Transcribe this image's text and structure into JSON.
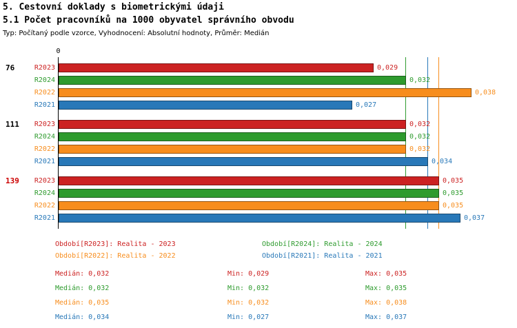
{
  "chart_data": {
    "type": "bar",
    "orientation": "horizontal",
    "title": "5. Cestovní doklady s biometrickými údaji",
    "subtitle": "5.1 Počet pracovníků na 1000 obyvatel správního obvodu",
    "note": "Typ: Počítaný podle vzorce, Vyhodnocení: Absolutní hodnoty, Průměr: Medián",
    "x_axis": {
      "origin_label": "0",
      "min": 0,
      "max": 0.04,
      "gridlines": false
    },
    "series_order": [
      "R2023",
      "R2024",
      "R2022",
      "R2021"
    ],
    "series_colors": {
      "R2023": "#cc2222",
      "R2024": "#2e9b2e",
      "R2022": "#f78d1d",
      "R2021": "#2878b8"
    },
    "groups": [
      {
        "label": "76",
        "label_color": "#000000",
        "values": {
          "R2023": 0.029,
          "R2024": 0.032,
          "R2022": 0.038,
          "R2021": 0.027
        },
        "value_labels": {
          "R2023": "0,029",
          "R2024": "0,032",
          "R2022": "0,038",
          "R2021": "0,027"
        }
      },
      {
        "label": "111",
        "label_color": "#000000",
        "values": {
          "R2023": 0.032,
          "R2024": 0.032,
          "R2022": 0.032,
          "R2021": 0.034
        },
        "value_labels": {
          "R2023": "0,032",
          "R2024": "0,032",
          "R2022": "0,032",
          "R2021": "0,034"
        }
      },
      {
        "label": "139",
        "label_color": "#cc0000",
        "values": {
          "R2023": 0.035,
          "R2024": 0.035,
          "R2022": 0.035,
          "R2021": 0.037
        },
        "value_labels": {
          "R2023": "0,035",
          "R2024": "0,035",
          "R2022": "0,035",
          "R2021": "0,037"
        }
      }
    ],
    "median_lines": {
      "R2023": 0.032,
      "R2024": 0.032,
      "R2022": 0.035,
      "R2021": 0.034
    },
    "legend_position": "bottom"
  },
  "legend": {
    "items": [
      {
        "series": "R2023",
        "text": "Období[R2023]: Realita - 2023"
      },
      {
        "series": "R2024",
        "text": "Období[R2024]: Realita - 2024"
      },
      {
        "series": "R2022",
        "text": "Období[R2022]: Realita - 2022"
      },
      {
        "series": "R2021",
        "text": "Období[R2021]: Realita - 2021"
      }
    ]
  },
  "stats": {
    "rows": [
      {
        "series": "R2023",
        "median": "Medián: 0,032",
        "min": "Min: 0,029",
        "max": "Max: 0,035"
      },
      {
        "series": "R2024",
        "median": "Medián: 0,032",
        "min": "Min: 0,032",
        "max": "Max: 0,035"
      },
      {
        "series": "R2022",
        "median": "Medián: 0,035",
        "min": "Min: 0,032",
        "max": "Max: 0,038"
      },
      {
        "series": "R2021",
        "median": "Medián: 0,034",
        "min": "Min: 0,027",
        "max": "Max: 0,037"
      }
    ]
  }
}
